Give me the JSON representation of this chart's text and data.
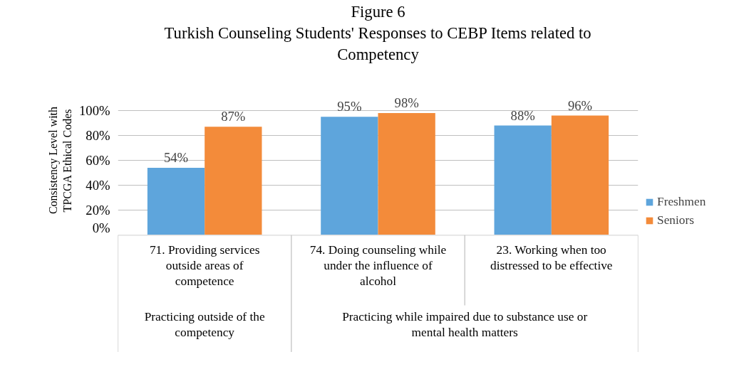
{
  "chart_data": {
    "type": "bar",
    "title": "Figure 6",
    "subtitle": "Turkish Counseling Students' Responses to CEBP Items related to Competency",
    "ylabel": "Consistency Level with TPCGA Ethical Codes",
    "categories": [
      "71. Providing services outside areas of competence",
      "74. Doing counseling while under the influence of alcohol",
      "23. Working when too distressed to be effective"
    ],
    "series": [
      {
        "name": "Freshmen",
        "color": "#5ea5dc",
        "values": [
          54,
          95,
          88
        ],
        "value_labels": [
          "54%",
          "95%",
          "88%"
        ]
      },
      {
        "name": "Seniors",
        "color": "#f38b3a",
        "values": [
          87,
          98,
          96
        ],
        "value_labels": [
          "87%",
          "98%",
          "96%"
        ]
      }
    ],
    "ylim": [
      0,
      100
    ],
    "yticks": [
      {
        "value": 0,
        "label": "0%"
      },
      {
        "value": 20,
        "label": "20%"
      },
      {
        "value": 40,
        "label": "40%"
      },
      {
        "value": 60,
        "label": "60%"
      },
      {
        "value": 80,
        "label": "80%"
      },
      {
        "value": 100,
        "label": "100%"
      }
    ],
    "grid": "y",
    "legend": "right",
    "annotations": [
      "Practicing outside of the competency",
      "Practicing while impaired due to substance use or mental health matters"
    ]
  }
}
